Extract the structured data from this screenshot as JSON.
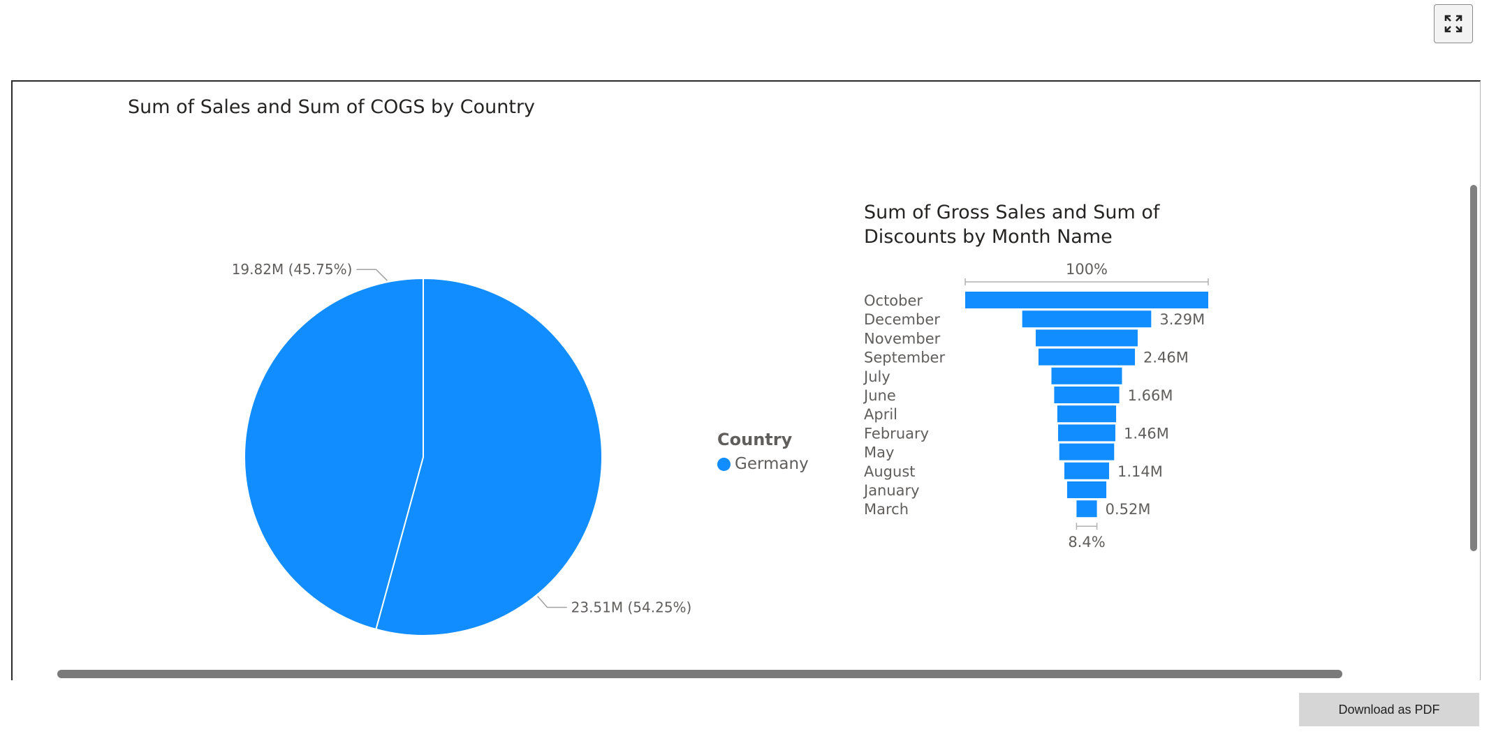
{
  "toolbar": {
    "expand_icon": "expand-fullscreen-icon"
  },
  "footer": {
    "download_label": "Download as PDF"
  },
  "pie": {
    "title": "Sum of Sales and Sum of COGS by Country",
    "legend": {
      "title": "Country",
      "items": [
        {
          "label": "Germany",
          "color": "#118DFF"
        }
      ]
    }
  },
  "funnel": {
    "title_line1": "Sum of Gross Sales and Sum of",
    "title_line2": "Discounts by Month Name",
    "top_percent": "100%",
    "bottom_percent": "8.4%"
  },
  "chart_data": [
    {
      "type": "pie",
      "title": "Sum of Sales and Sum of COGS by Country",
      "legend_title": "Country",
      "legend_position": "right",
      "color": "#118DFF",
      "slices": [
        {
          "label": "23.51M (54.25%)",
          "value": 23.51,
          "percent": 54.25
        },
        {
          "label": "19.82M (45.75%)",
          "value": 19.82,
          "percent": 45.75
        }
      ]
    },
    {
      "type": "bar",
      "subtype": "funnel",
      "title": "Sum of Gross Sales and Sum of Discounts by Month Name",
      "color": "#118DFF",
      "categories": [
        "October",
        "December",
        "November",
        "September",
        "July",
        "June",
        "April",
        "February",
        "May",
        "August",
        "January",
        "March"
      ],
      "values": [
        6.2,
        3.29,
        2.6,
        2.46,
        1.8,
        1.66,
        1.5,
        1.46,
        1.4,
        1.14,
        1.0,
        0.52
      ],
      "data_labels": [
        "",
        "3.29M",
        "",
        "2.46M",
        "",
        "1.66M",
        "",
        "1.46M",
        "",
        "1.14M",
        "",
        "0.52M"
      ],
      "top_percent_label": "100%",
      "bottom_percent_label": "8.4%"
    }
  ]
}
